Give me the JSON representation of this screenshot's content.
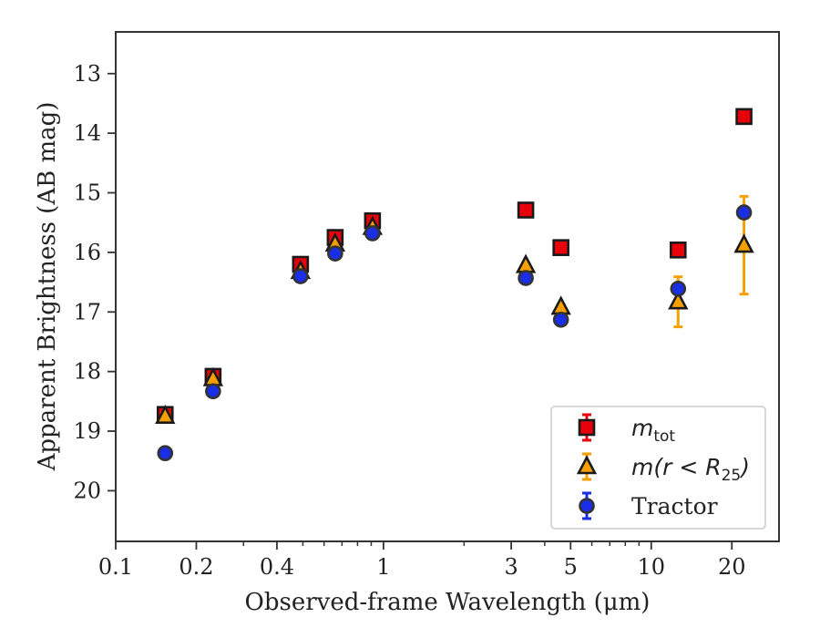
{
  "chart_data": {
    "type": "scatter",
    "title": "",
    "xlabel": "Observed-frame Wavelength (μm)",
    "ylabel": "Apparent Brightness (AB mag)",
    "xscale": "log",
    "xlim": [
      0.1,
      30
    ],
    "ylim": [
      20.85,
      12.3
    ],
    "y_inverted": true,
    "xticks": [
      {
        "value": 0.1,
        "label": "0.1"
      },
      {
        "value": 0.2,
        "label": "0.2"
      },
      {
        "value": 0.4,
        "label": "0.4"
      },
      {
        "value": 1,
        "label": "1"
      },
      {
        "value": 3,
        "label": "3"
      },
      {
        "value": 5,
        "label": "5"
      },
      {
        "value": 10,
        "label": "10"
      },
      {
        "value": 20,
        "label": "20"
      }
    ],
    "yticks": [
      {
        "value": 13,
        "label": "13"
      },
      {
        "value": 14,
        "label": "14"
      },
      {
        "value": 15,
        "label": "15"
      },
      {
        "value": 16,
        "label": "16"
      },
      {
        "value": 17,
        "label": "17"
      },
      {
        "value": 18,
        "label": "18"
      },
      {
        "value": 19,
        "label": "19"
      },
      {
        "value": 20,
        "label": "20"
      }
    ],
    "legend_position": "lower-right",
    "series": [
      {
        "name": "m_tot",
        "label_main": "m",
        "label_sub": "tot",
        "marker": "square",
        "face_color": "#e8000b",
        "edge_color": "#1a1a1a",
        "err_color": "#e8000b",
        "points": [
          {
            "x": 0.153,
            "y": 18.72,
            "yerr": 0.05
          },
          {
            "x": 0.231,
            "y": 18.08,
            "yerr": 0.05
          },
          {
            "x": 0.49,
            "y": 16.2,
            "yerr": 0.03
          },
          {
            "x": 0.66,
            "y": 15.75,
            "yerr": 0.03
          },
          {
            "x": 0.91,
            "y": 15.47,
            "yerr": 0.03
          },
          {
            "x": 3.4,
            "y": 15.29,
            "yerr": 0.02
          },
          {
            "x": 4.6,
            "y": 15.92,
            "yerr": 0.02
          },
          {
            "x": 12.6,
            "y": 15.96,
            "yerr": 0.04
          },
          {
            "x": 22.2,
            "y": 13.72,
            "yerr": 0.04
          }
        ]
      },
      {
        "name": "m(r<R25)",
        "label_main": "m(r < R",
        "label_sub": "25",
        "label_end": ")",
        "marker": "triangle",
        "face_color": "#f5a000",
        "edge_color": "#1a1a1a",
        "err_color": "#f5a000",
        "points": [
          {
            "x": 0.153,
            "y": 18.75,
            "yerr": 0.05
          },
          {
            "x": 0.231,
            "y": 18.12,
            "yerr": 0.05
          },
          {
            "x": 0.49,
            "y": 16.32,
            "yerr": 0.03
          },
          {
            "x": 0.66,
            "y": 15.86,
            "yerr": 0.03
          },
          {
            "x": 0.91,
            "y": 15.58,
            "yerr": 0.03
          },
          {
            "x": 3.4,
            "y": 16.22,
            "yerr": 0.03
          },
          {
            "x": 4.6,
            "y": 16.92,
            "yerr": 0.03
          },
          {
            "x": 12.6,
            "y": 16.83,
            "yerr": 0.42
          },
          {
            "x": 22.2,
            "y": 15.88,
            "yerr": 0.82
          }
        ]
      },
      {
        "name": "Tractor",
        "label_main": "Tractor",
        "marker": "circle",
        "face_color": "#1a2ee6",
        "edge_color": "#333333",
        "err_color": "#1a2ee6",
        "points": [
          {
            "x": 0.153,
            "y": 19.37,
            "yerr": 0.05
          },
          {
            "x": 0.231,
            "y": 18.33,
            "yerr": 0.05
          },
          {
            "x": 0.49,
            "y": 16.4,
            "yerr": 0.03
          },
          {
            "x": 0.66,
            "y": 16.02,
            "yerr": 0.03
          },
          {
            "x": 0.91,
            "y": 15.68,
            "yerr": 0.03
          },
          {
            "x": 3.4,
            "y": 16.43,
            "yerr": 0.03
          },
          {
            "x": 4.6,
            "y": 17.13,
            "yerr": 0.03
          },
          {
            "x": 12.6,
            "y": 16.61,
            "yerr": 0.05
          },
          {
            "x": 22.2,
            "y": 15.33,
            "yerr": 0.04
          }
        ]
      }
    ]
  }
}
